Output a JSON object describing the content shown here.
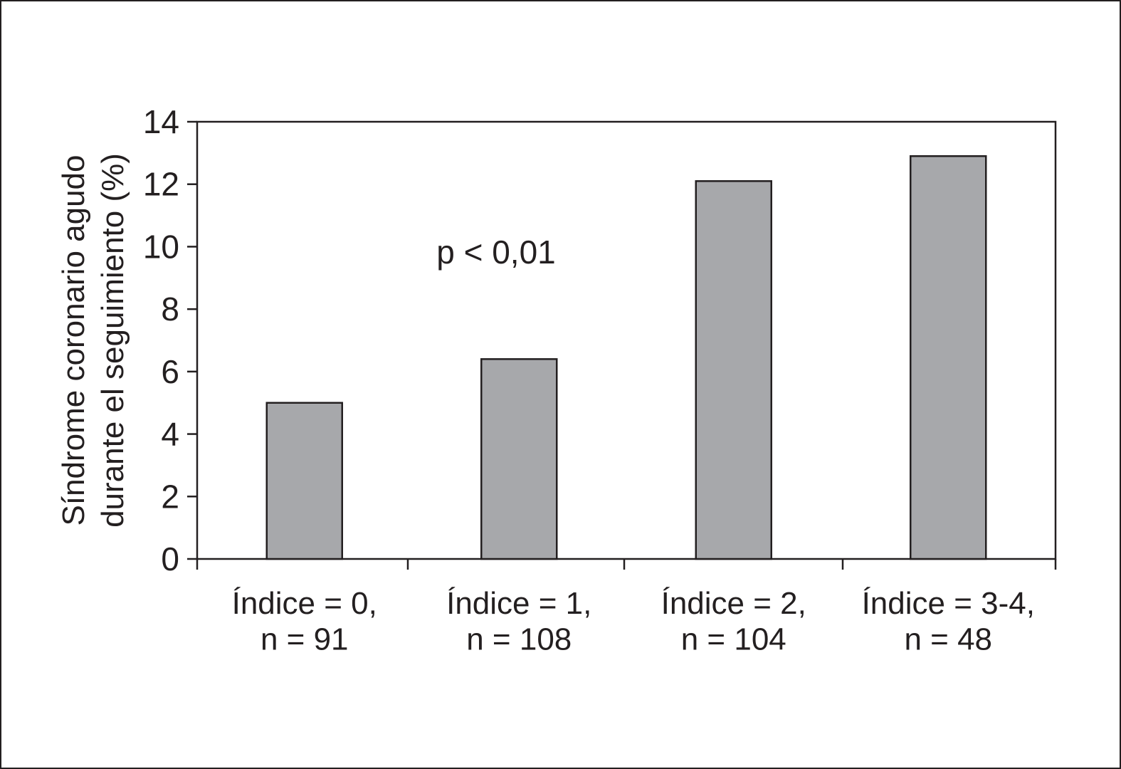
{
  "chart_data": {
    "type": "bar",
    "y_label": [
      "Síndrome coronario agudo",
      "durante el seguimiento (%)"
    ],
    "annotation": "p < 0,01",
    "categories": [
      "Índice = 0,\nn = 91",
      "Índice = 1,\nn = 108",
      "Índice = 2,\nn = 104",
      "Índice = 3-4,\nn = 48"
    ],
    "values": [
      5.0,
      6.4,
      12.1,
      12.9
    ],
    "color": "#a7a8ab",
    "ylim": [
      0,
      14
    ],
    "yticks": [
      0,
      2,
      4,
      6,
      8,
      10,
      12,
      14
    ],
    "grid": false
  }
}
